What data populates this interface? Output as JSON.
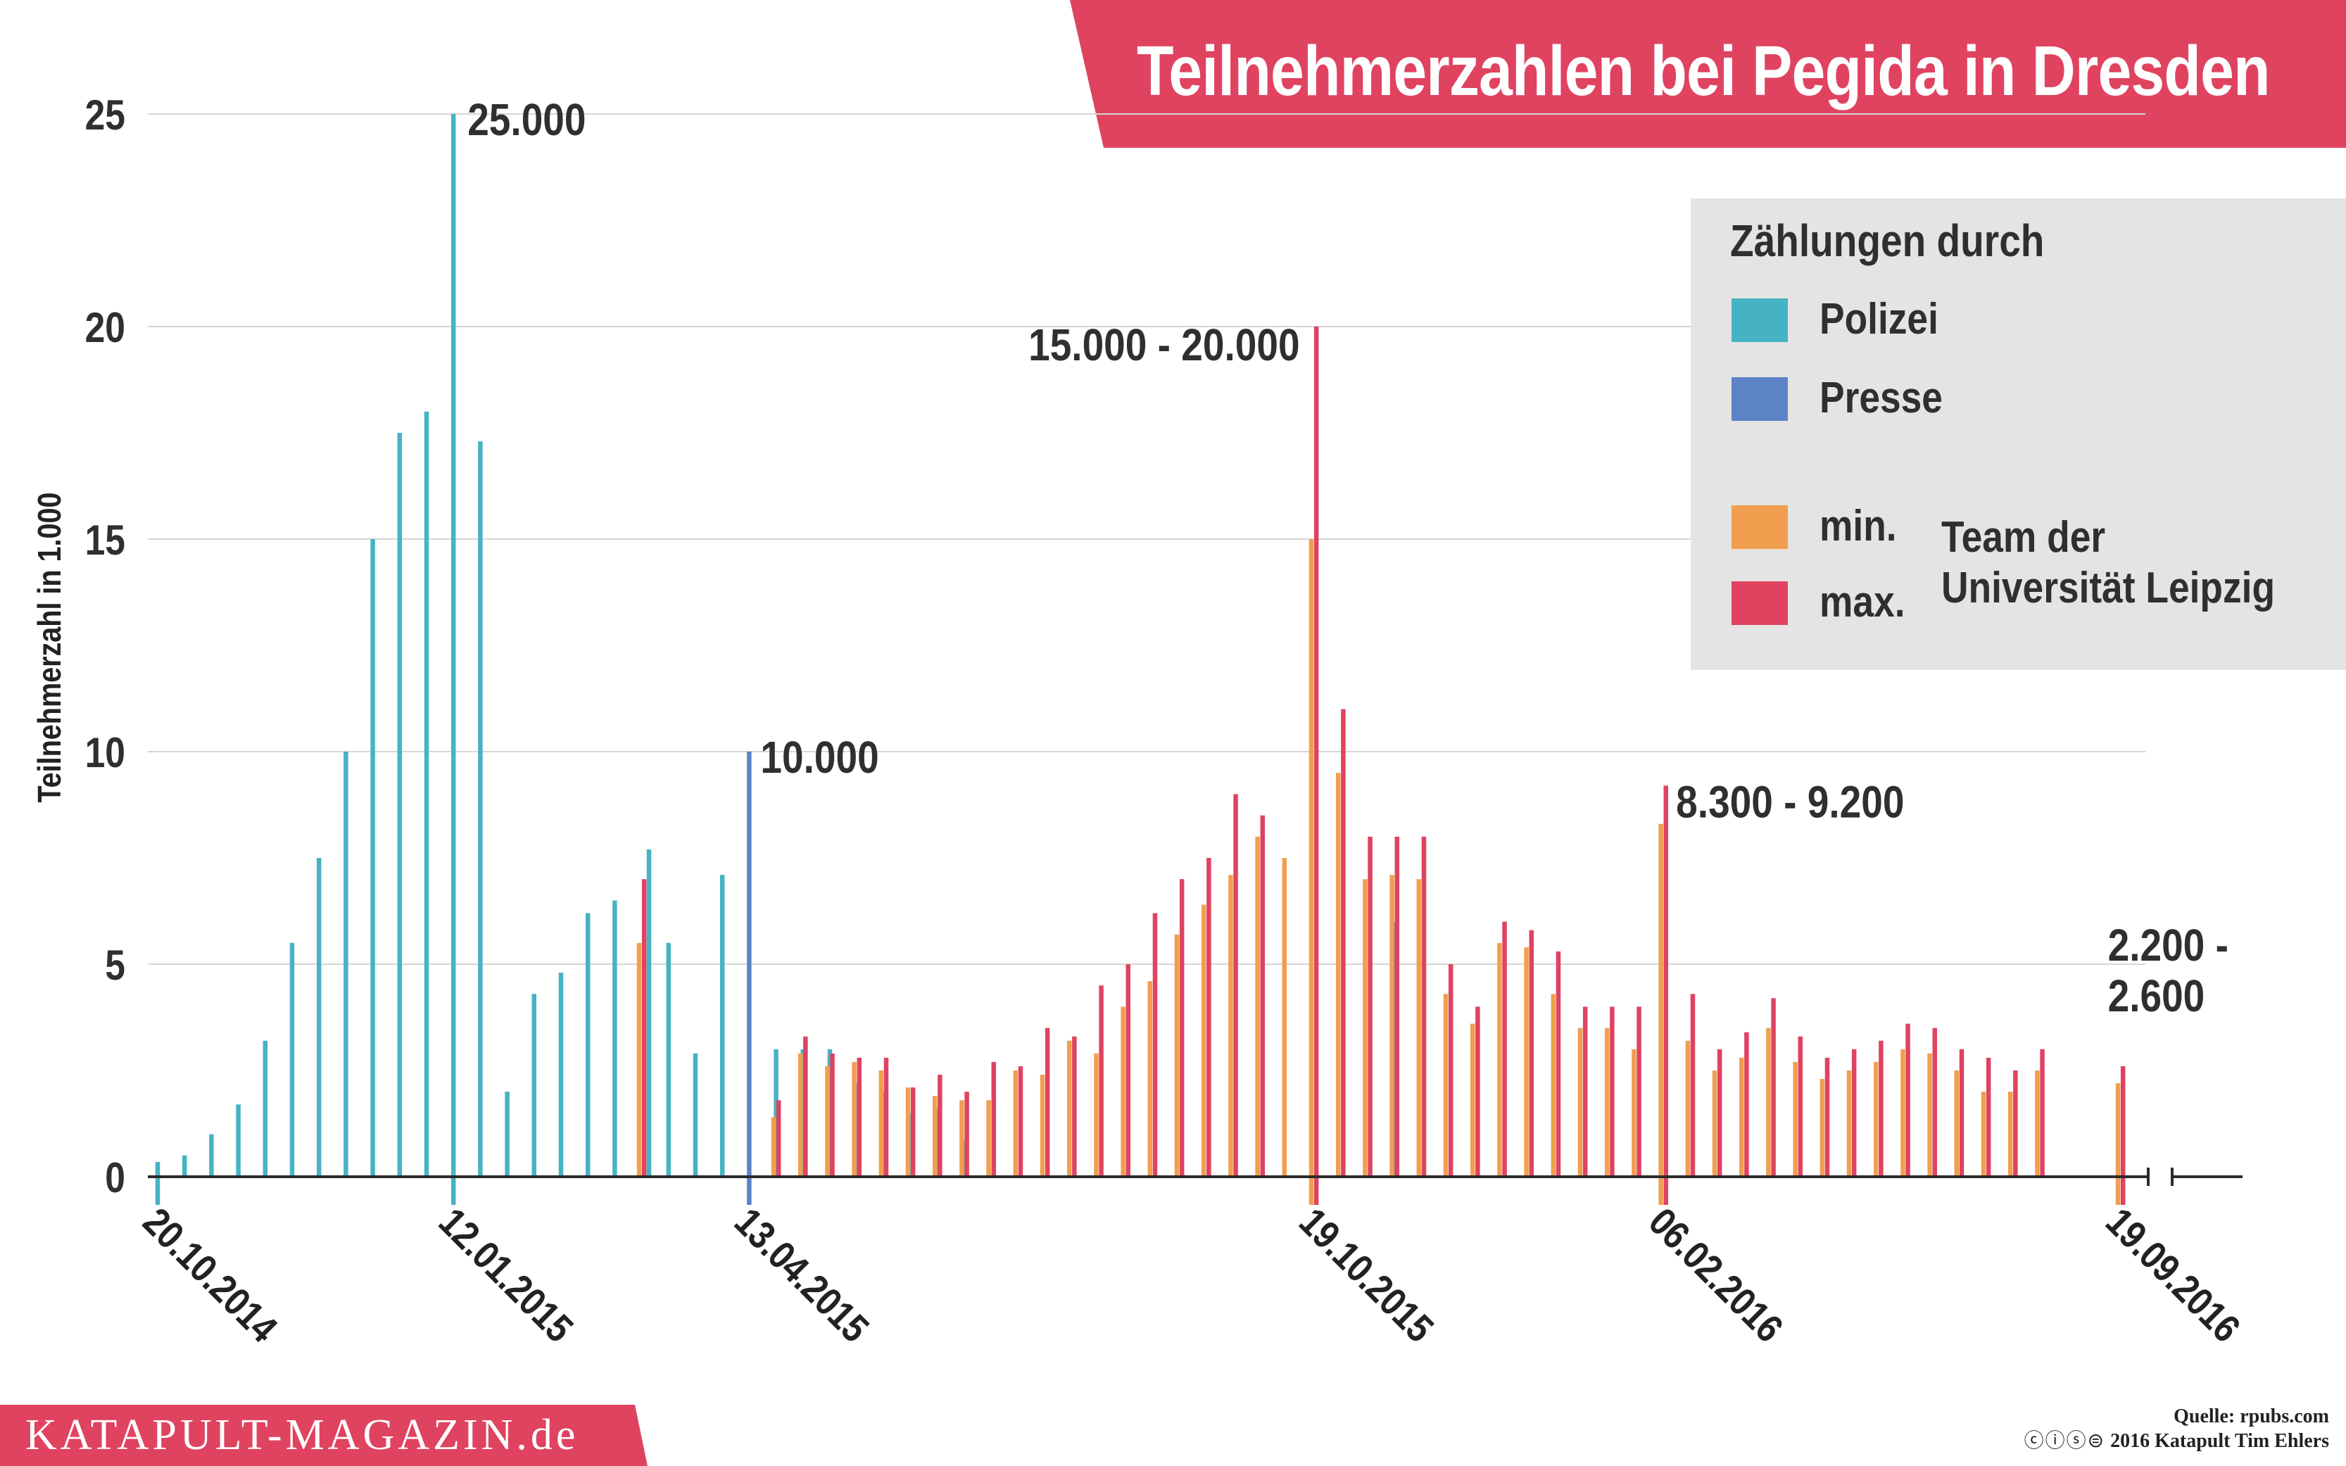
{
  "title": "Teilnehmerzahlen bei Pegida in Dresden",
  "legend": {
    "heading": "Zählungen durch",
    "items": [
      {
        "key": "polizei",
        "label": "Polizei",
        "color": "#46b3c4"
      },
      {
        "key": "presse",
        "label": "Presse",
        "color": "#5b83c6"
      },
      {
        "key": "min",
        "label": "min.",
        "color": "#f19e4f"
      },
      {
        "key": "max",
        "label": "max.",
        "color": "#df4360"
      }
    ],
    "team_line1": "Team der",
    "team_line2": "Universität Leipzig"
  },
  "footer": {
    "brand": "KATAPULT-MAGAZIN.de",
    "source": "Quelle: rpubs.com",
    "credit": "2016 Katapult Tim Ehlers",
    "license_icons": "ⓒⓘⓢ⊜"
  },
  "colors": {
    "brand_red": "#df4360",
    "polizei": "#46b3c4",
    "presse": "#5b83c6",
    "min": "#f19e4f",
    "max": "#df4360",
    "grid": "#d6d6d6",
    "axis": "#2b2b2b",
    "legend_bg": "#e4e4e4",
    "text": "#2f2f2f"
  },
  "chart_data": {
    "type": "bar",
    "title": "Teilnehmerzahlen bei Pegida in Dresden",
    "ylabel": "Teilnehmerzahl in 1.000",
    "xlabel": "",
    "ylim": [
      0,
      25
    ],
    "yticks": [
      0,
      5,
      10,
      15,
      20,
      25
    ],
    "x_index_range": [
      0,
      73
    ],
    "x_break": "axis interrupted between week 72 and 19.09.2016",
    "xtick_labels": [
      {
        "label": "20.10.2014",
        "index": 0
      },
      {
        "label": "12.01.2015",
        "index": 11
      },
      {
        "label": "13.04.2015",
        "index": 22
      },
      {
        "label": "19.10.2015",
        "index": 43
      },
      {
        "label": "06.02.2016",
        "index": 56
      },
      {
        "label": "19.09.2016",
        "index": 73
      }
    ],
    "series": [
      {
        "name": "Polizei",
        "color": "#46b3c4",
        "points": [
          [
            0,
            0.35
          ],
          [
            1,
            0.5
          ],
          [
            2,
            1.0
          ],
          [
            3,
            1.7
          ],
          [
            4,
            3.2
          ],
          [
            5,
            5.5
          ],
          [
            6,
            7.5
          ],
          [
            7,
            10.0
          ],
          [
            8,
            15.0
          ],
          [
            9,
            17.5
          ],
          [
            10,
            18.0
          ],
          [
            11,
            25.0
          ],
          [
            12,
            17.3
          ],
          [
            13,
            2.0
          ],
          [
            14,
            4.3
          ],
          [
            15,
            4.8
          ],
          [
            16,
            6.2
          ],
          [
            17,
            6.5
          ],
          [
            18,
            7.7
          ],
          [
            19,
            5.5
          ],
          [
            20,
            2.9
          ],
          [
            21,
            7.1
          ],
          [
            23,
            3.0
          ],
          [
            24,
            3.0
          ],
          [
            25,
            3.0
          ],
          [
            26,
            2.2
          ],
          [
            27,
            2.0
          ],
          [
            28,
            1.5
          ],
          [
            29,
            1.6
          ],
          [
            30,
            0.85
          ]
        ]
      },
      {
        "name": "Presse",
        "color": "#5b83c6",
        "points": [
          [
            22,
            10.0
          ],
          [
            46,
            6.0
          ]
        ]
      },
      {
        "name": "min.",
        "color": "#f19e4f",
        "points": [
          [
            18,
            5.5
          ],
          [
            23,
            1.4
          ],
          [
            24,
            2.9
          ],
          [
            25,
            2.6
          ],
          [
            26,
            2.7
          ],
          [
            27,
            2.5
          ],
          [
            28,
            2.1
          ],
          [
            29,
            1.9
          ],
          [
            30,
            1.8
          ],
          [
            31,
            1.8
          ],
          [
            32,
            2.5
          ],
          [
            33,
            2.4
          ],
          [
            34,
            3.2
          ],
          [
            35,
            2.9
          ],
          [
            36,
            4.0
          ],
          [
            37,
            4.6
          ],
          [
            38,
            5.7
          ],
          [
            39,
            6.4
          ],
          [
            40,
            7.1
          ],
          [
            41,
            8.0
          ],
          [
            42,
            7.5
          ],
          [
            43,
            15.0
          ],
          [
            44,
            9.5
          ],
          [
            45,
            7.0
          ],
          [
            46,
            7.1
          ],
          [
            47,
            7.0
          ],
          [
            48,
            4.3
          ],
          [
            49,
            3.6
          ],
          [
            50,
            5.5
          ],
          [
            51,
            5.4
          ],
          [
            52,
            4.3
          ],
          [
            53,
            3.5
          ],
          [
            54,
            3.5
          ],
          [
            55,
            3.0
          ],
          [
            56,
            8.3
          ],
          [
            57,
            3.2
          ],
          [
            58,
            2.5
          ],
          [
            59,
            2.8
          ],
          [
            60,
            3.5
          ],
          [
            61,
            2.7
          ],
          [
            62,
            2.3
          ],
          [
            63,
            2.5
          ],
          [
            64,
            2.7
          ],
          [
            65,
            3.0
          ],
          [
            66,
            2.9
          ],
          [
            67,
            2.5
          ],
          [
            68,
            2.0
          ],
          [
            69,
            2.0
          ],
          [
            70,
            2.5
          ],
          [
            73,
            2.2
          ]
        ]
      },
      {
        "name": "max.",
        "color": "#df4360",
        "points": [
          [
            18,
            7.0
          ],
          [
            23,
            1.8
          ],
          [
            24,
            3.3
          ],
          [
            25,
            2.9
          ],
          [
            26,
            2.8
          ],
          [
            27,
            2.8
          ],
          [
            28,
            2.1
          ],
          [
            29,
            2.4
          ],
          [
            30,
            2.0
          ],
          [
            31,
            2.7
          ],
          [
            32,
            2.6
          ],
          [
            33,
            3.5
          ],
          [
            34,
            3.3
          ],
          [
            35,
            4.5
          ],
          [
            36,
            5.0
          ],
          [
            37,
            6.2
          ],
          [
            38,
            7.0
          ],
          [
            39,
            7.5
          ],
          [
            40,
            9.0
          ],
          [
            41,
            8.5
          ],
          [
            43,
            20.0
          ],
          [
            44,
            11.0
          ],
          [
            45,
            8.0
          ],
          [
            46,
            8.0
          ],
          [
            47,
            8.0
          ],
          [
            48,
            5.0
          ],
          [
            49,
            4.0
          ],
          [
            50,
            6.0
          ],
          [
            51,
            5.8
          ],
          [
            52,
            5.3
          ],
          [
            53,
            4.0
          ],
          [
            54,
            4.0
          ],
          [
            55,
            4.0
          ],
          [
            56,
            9.2
          ],
          [
            57,
            4.3
          ],
          [
            58,
            3.0
          ],
          [
            59,
            3.4
          ],
          [
            60,
            4.2
          ],
          [
            61,
            3.3
          ],
          [
            62,
            2.8
          ],
          [
            63,
            3.0
          ],
          [
            64,
            3.2
          ],
          [
            65,
            3.6
          ],
          [
            66,
            3.5
          ],
          [
            67,
            3.0
          ],
          [
            68,
            2.8
          ],
          [
            69,
            2.5
          ],
          [
            70,
            3.0
          ],
          [
            73,
            2.6
          ]
        ]
      }
    ],
    "annotations": [
      {
        "text": "25.000",
        "index": 11,
        "value": 25.0
      },
      {
        "text": "10.000",
        "index": 22,
        "value": 10.0
      },
      {
        "text": "15.000 - 20.000",
        "index": 43,
        "value": 20.0
      },
      {
        "text": "8.300 - 9.200",
        "index": 56,
        "value": 9.2
      },
      {
        "text": "2.200 -",
        "index": 73,
        "value": 2.6
      },
      {
        "text": "2.600",
        "index": 73,
        "value": 2.6
      }
    ],
    "highlighted_indices": [
      0,
      11,
      22,
      43,
      56,
      73
    ],
    "grid": true,
    "legend_position": "top-right"
  }
}
